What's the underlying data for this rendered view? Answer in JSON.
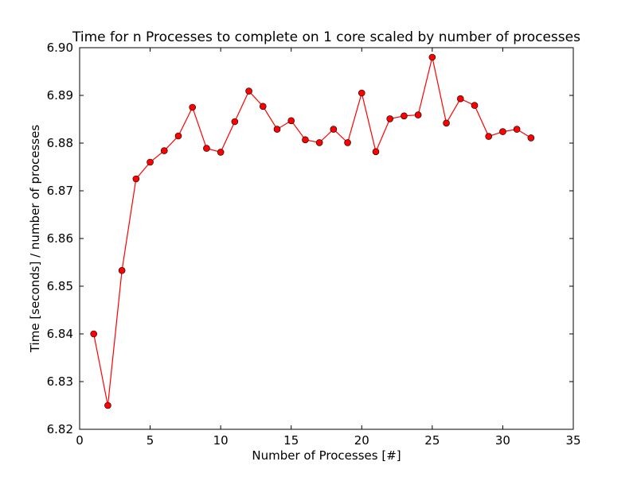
{
  "chart_data": {
    "type": "line",
    "title": "Time for n Processes to complete on 1 core scaled by number of processes",
    "xlabel": "Number of Processes [#]",
    "ylabel": "Time [seconds] / number of processes",
    "xlim": [
      0,
      35
    ],
    "ylim": [
      6.82,
      6.9
    ],
    "xticks": [
      0,
      5,
      10,
      15,
      20,
      25,
      30,
      35
    ],
    "yticks": [
      6.82,
      6.83,
      6.84,
      6.85,
      6.86,
      6.87,
      6.88,
      6.89,
      6.9
    ],
    "xtick_labels": [
      "0",
      "5",
      "10",
      "15",
      "20",
      "25",
      "30",
      "35"
    ],
    "ytick_labels": [
      "6.82",
      "6.83",
      "6.84",
      "6.85",
      "6.86",
      "6.87",
      "6.88",
      "6.89",
      "6.90"
    ],
    "grid": false,
    "series": [
      {
        "color": "#ff0000",
        "marker": "circle",
        "x": [
          1,
          2,
          3,
          4,
          5,
          6,
          7,
          8,
          9,
          10,
          11,
          12,
          13,
          14,
          15,
          16,
          17,
          18,
          19,
          20,
          21,
          22,
          23,
          24,
          25,
          26,
          27,
          28,
          29,
          30,
          31,
          32
        ],
        "y": [
          6.84,
          6.825,
          6.8533,
          6.8725,
          6.876,
          6.8784,
          6.8815,
          6.8875,
          6.8789,
          6.8781,
          6.8845,
          6.8909,
          6.8877,
          6.8829,
          6.8847,
          6.8807,
          6.8801,
          6.8829,
          6.8801,
          6.8905,
          6.8782,
          6.8851,
          6.8857,
          6.8859,
          6.898,
          6.8842,
          6.8893,
          6.8879,
          6.8814,
          6.8824,
          6.8829,
          6.8811
        ]
      }
    ]
  }
}
